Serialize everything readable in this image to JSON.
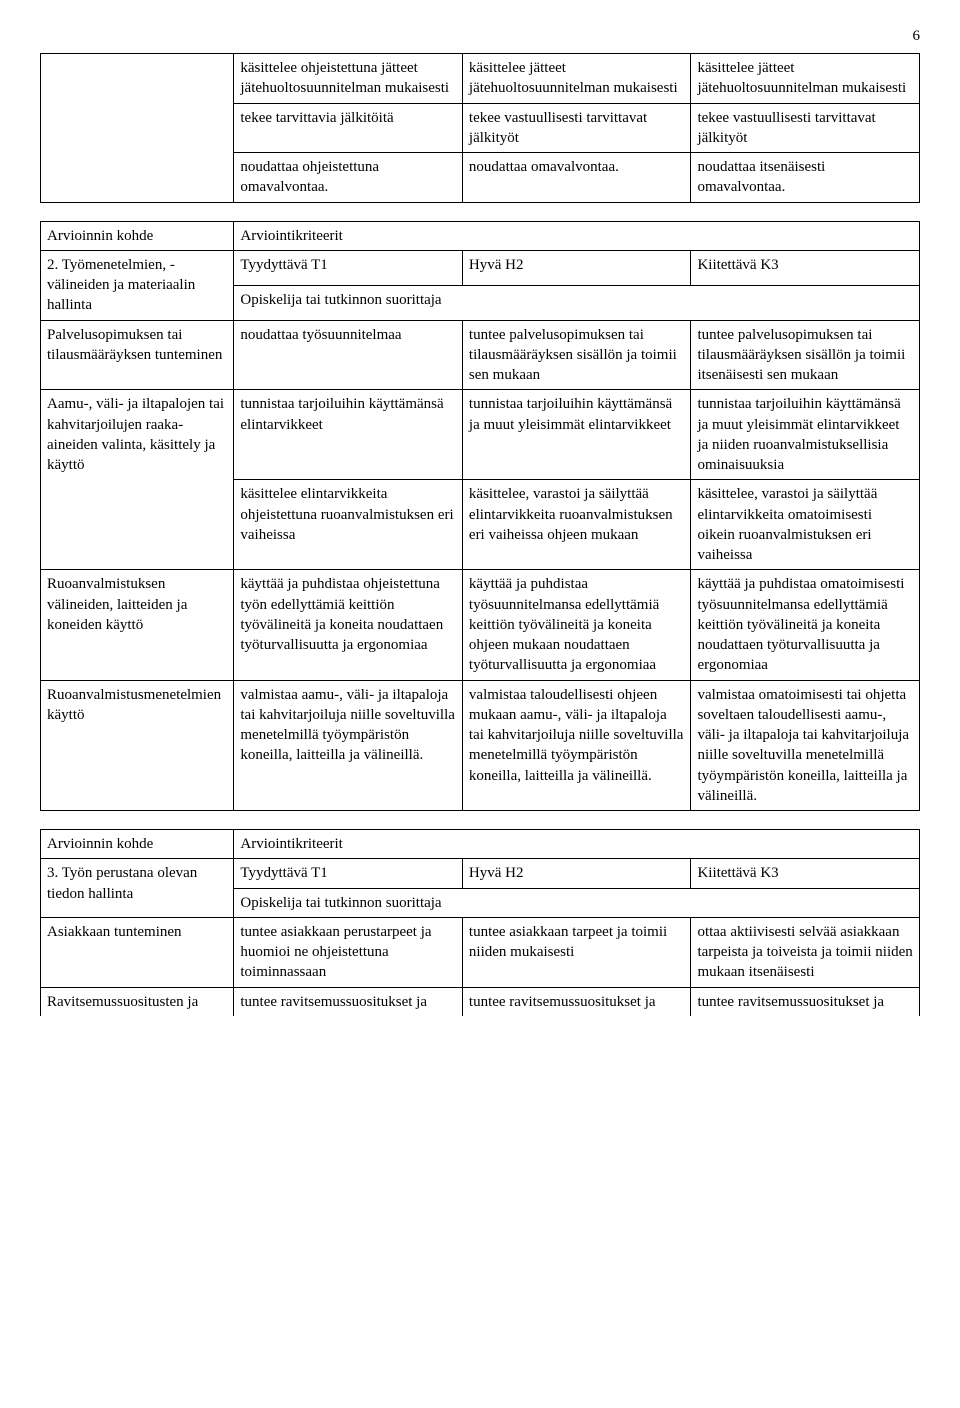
{
  "page_number": "6",
  "table1": {
    "rows": [
      [
        "",
        "käsittelee ohjeistettuna jätteet jätehuoltosuunnitelman mukaisesti",
        "käsittelee jätteet jätehuoltosuunnitelman mukaisesti",
        "käsittelee jätteet jätehuoltosuunnitelman mukaisesti"
      ],
      [
        "",
        "tekee tarvittavia jälkitöitä",
        "tekee vastuullisesti tarvittavat jälkityöt",
        "tekee vastuullisesti tarvittavat jälkityöt"
      ],
      [
        "",
        "noudattaa ohjeistettuna omavalvontaa.",
        "noudattaa omavalvontaa.",
        "noudattaa itsenäisesti omavalvontaa."
      ]
    ]
  },
  "table2": {
    "header": [
      "Arvioinnin kohde",
      "Arviointikriteerit"
    ],
    "row2_left": "2. Työmenetelmien, -välineiden ja materiaalin hallinta",
    "row2_levels": [
      "Tyydyttävä T1",
      "Hyvä H2",
      "Kiitettävä K3"
    ],
    "row2_sub": "Opiskelija tai tutkinnon suorittaja",
    "rows": [
      [
        "Palvelusopimuksen tai tilausmääräyksen tunteminen",
        "noudattaa työsuunnitelmaa",
        "tuntee palvelusopimuksen tai tilausmääräyksen sisällön ja toimii sen mukaan",
        "tuntee palvelusopimuksen tai tilausmääräyksen sisällön ja toimii itsenäisesti sen mukaan"
      ],
      [
        "Aamu-, väli- ja iltapalojen tai kahvitarjoilujen raaka-aineiden valinta, käsittely ja käyttö",
        "tunnistaa tarjoiluihin käyttämänsä elintarvikkeet",
        "tunnistaa tarjoiluihin käyttämänsä ja muut yleisimmät elintarvikkeet",
        "tunnistaa tarjoiluihin käyttämänsä ja muut yleisimmät elintarvikkeet ja niiden ruoanvalmistuksellisia ominaisuuksia"
      ],
      [
        "",
        "käsittelee elintarvikkeita ohjeistettuna ruoanvalmistuksen eri vaiheissa",
        "käsittelee, varastoi ja säilyttää elintarvikkeita ruoanvalmistuksen eri vaiheissa ohjeen mukaan",
        "käsittelee, varastoi ja säilyttää elintarvikkeita omatoimisesti oikein ruoanvalmistuksen eri vaiheissa"
      ],
      [
        "Ruoanvalmistuksen välineiden, laitteiden ja koneiden käyttö",
        "käyttää ja puhdistaa ohjeistettuna työn edellyttämiä keittiön työvälineitä ja koneita noudattaen työturvallisuutta ja ergonomiaa",
        "käyttää ja puhdistaa työsuunnitelmansa edellyttämiä keittiön työvälineitä ja koneita ohjeen mukaan noudattaen työturvallisuutta ja ergonomiaa",
        "käyttää ja puhdistaa omatoimisesti työsuunnitelmansa edellyttämiä keittiön työvälineitä ja koneita noudattaen työturvallisuutta ja ergonomiaa"
      ],
      [
        "Ruoanvalmistusmenetelmien käyttö",
        "valmistaa aamu-, väli- ja iltapaloja tai kahvitarjoiluja niille soveltuvilla menetelmillä työympäristön koneilla, laitteilla ja välineillä.",
        "valmistaa taloudellisesti ohjeen mukaan aamu-, väli- ja iltapaloja tai kahvitarjoiluja niille soveltuvilla menetelmillä työympäristön koneilla, laitteilla ja välineillä.",
        "valmistaa omatoimisesti tai ohjetta soveltaen taloudellisesti aamu-, väli- ja iltapaloja tai kahvitarjoiluja niille soveltuvilla menetelmillä työympäristön koneilla, laitteilla ja välineillä."
      ]
    ]
  },
  "table3": {
    "header": [
      "Arvioinnin kohde",
      "Arviointikriteerit"
    ],
    "row2_left": "3. Työn perustana olevan tiedon hallinta",
    "row2_levels": [
      "Tyydyttävä T1",
      "Hyvä H2",
      "Kiitettävä K3"
    ],
    "row2_sub": "Opiskelija tai tutkinnon suorittaja",
    "rows": [
      [
        "Asiakkaan tunteminen",
        "tuntee asiakkaan perustarpeet ja huomioi ne ohjeistettuna toiminnassaan",
        "tuntee asiakkaan tarpeet ja toimii niiden mukaisesti",
        "ottaa aktiivisesti selvää asiakkaan tarpeista ja toiveista ja toimii niiden mukaan itsenäisesti"
      ],
      [
        "Ravitsemussuositusten ja",
        "tuntee ravitsemussuositukset ja",
        "tuntee ravitsemussuositukset ja",
        "tuntee ravitsemussuositukset ja"
      ]
    ]
  }
}
